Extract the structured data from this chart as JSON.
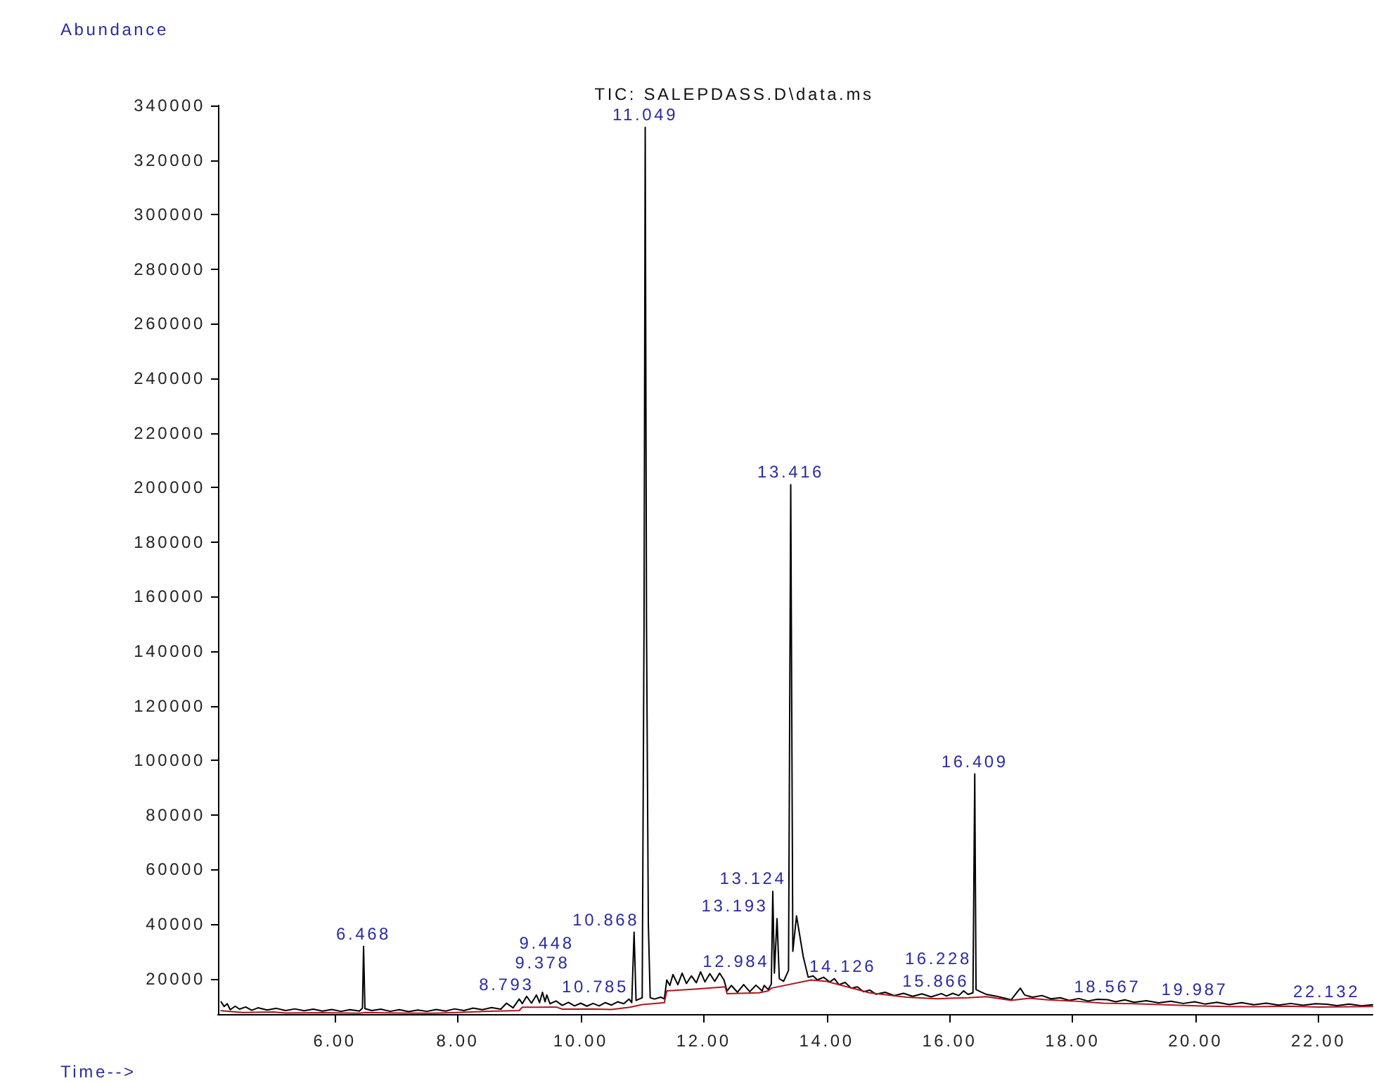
{
  "chart_data": {
    "type": "line",
    "title": "TIC: SALEPDASS.D\\data.ms",
    "xlabel": "Time-->",
    "ylabel": "Abundance",
    "xlim": [
      4.1,
      22.88
    ],
    "xticks": [
      {
        "value": 6,
        "label": "6.00"
      },
      {
        "value": 8,
        "label": "8.00"
      },
      {
        "value": 10,
        "label": "10.00"
      },
      {
        "value": 12,
        "label": "12.00"
      },
      {
        "value": 14,
        "label": "14.00"
      },
      {
        "value": 16,
        "label": "16.00"
      },
      {
        "value": 18,
        "label": "18.00"
      },
      {
        "value": 20,
        "label": "20.00"
      },
      {
        "value": 22,
        "label": "22.00"
      }
    ],
    "ylim": [
      7000,
      340000
    ],
    "yticks": [
      20000,
      40000,
      60000,
      80000,
      100000,
      120000,
      140000,
      160000,
      180000,
      200000,
      220000,
      240000,
      260000,
      280000,
      300000,
      320000,
      340000
    ],
    "series": [
      {
        "color": "#000000",
        "x": [
          4.15,
          4.2,
          4.25,
          4.3,
          4.38,
          4.45,
          4.55,
          4.65,
          4.75,
          4.9,
          5.05,
          5.2,
          5.35,
          5.5,
          5.65,
          5.8,
          5.95,
          6.1,
          6.25,
          6.4,
          6.45,
          6.468,
          6.49,
          6.6,
          6.75,
          6.9,
          7.05,
          7.2,
          7.35,
          7.5,
          7.65,
          7.8,
          7.95,
          8.1,
          8.25,
          8.4,
          8.55,
          8.7,
          8.793,
          8.9,
          9.0,
          9.05,
          9.12,
          9.2,
          9.28,
          9.33,
          9.378,
          9.42,
          9.448,
          9.5,
          9.6,
          9.7,
          9.8,
          9.9,
          10.0,
          10.1,
          10.2,
          10.3,
          10.4,
          10.5,
          10.6,
          10.7,
          10.785,
          10.83,
          10.868,
          10.9,
          10.95,
          11.0,
          11.03,
          11.049,
          11.07,
          11.1,
          11.13,
          11.2,
          11.3,
          11.36,
          11.4,
          11.45,
          11.5,
          11.58,
          11.65,
          11.72,
          11.8,
          11.88,
          11.95,
          12.02,
          12.1,
          12.18,
          12.26,
          12.33,
          12.38,
          12.45,
          12.55,
          12.65,
          12.75,
          12.85,
          12.95,
          12.984,
          13.05,
          13.1,
          13.124,
          13.15,
          13.193,
          13.23,
          13.3,
          13.38,
          13.416,
          13.45,
          13.51,
          13.62,
          13.7,
          13.78,
          13.85,
          13.95,
          14.05,
          14.126,
          14.2,
          14.3,
          14.4,
          14.5,
          14.6,
          14.7,
          14.8,
          14.95,
          15.1,
          15.25,
          15.4,
          15.55,
          15.7,
          15.866,
          15.95,
          16.05,
          16.15,
          16.228,
          16.3,
          16.38,
          16.409,
          16.43,
          16.5,
          16.6,
          16.75,
          16.9,
          17.0,
          17.08,
          17.15,
          17.22,
          17.35,
          17.5,
          17.65,
          17.8,
          17.95,
          18.1,
          18.25,
          18.4,
          18.567,
          18.7,
          18.85,
          19.0,
          19.2,
          19.4,
          19.6,
          19.8,
          19.987,
          20.15,
          20.35,
          20.55,
          20.75,
          20.95,
          21.15,
          21.35,
          21.55,
          21.75,
          21.95,
          22.132,
          22.3,
          22.5,
          22.7,
          22.88
        ],
        "values": [
          11500,
          9800,
          10800,
          8600,
          9900,
          8800,
          9600,
          8400,
          9300,
          8500,
          9100,
          8300,
          8900,
          8200,
          8800,
          8100,
          8700,
          8000,
          8600,
          8100,
          9200,
          31800,
          9000,
          8300,
          8800,
          8000,
          8600,
          7900,
          8500,
          8000,
          8700,
          8100,
          8900,
          8300,
          9200,
          8600,
          9400,
          8800,
          11000,
          9300,
          12500,
          10800,
          13500,
          11000,
          14000,
          11200,
          15000,
          11500,
          14000,
          10800,
          11800,
          10200,
          11300,
          10000,
          11000,
          9900,
          10900,
          10000,
          11200,
          10300,
          11500,
          10800,
          12500,
          11200,
          37000,
          12000,
          12500,
          13000,
          150000,
          332000,
          150000,
          40000,
          13000,
          12500,
          13200,
          12600,
          19500,
          17500,
          21500,
          17800,
          22000,
          18200,
          21000,
          18500,
          22500,
          18800,
          21800,
          19000,
          22000,
          19500,
          15500,
          17500,
          15000,
          17800,
          15200,
          17600,
          15500,
          17500,
          16000,
          18000,
          52000,
          22000,
          42000,
          20000,
          19000,
          23000,
          201000,
          30000,
          43000,
          28000,
          20500,
          21000,
          19500,
          20500,
          18800,
          20000,
          17800,
          18600,
          16500,
          17000,
          15200,
          15800,
          14300,
          15000,
          13800,
          14600,
          13500,
          14400,
          13300,
          14500,
          13600,
          14600,
          13800,
          15500,
          14200,
          14800,
          95000,
          16000,
          15200,
          14200,
          13600,
          12800,
          12200,
          14500,
          16500,
          14000,
          13200,
          13800,
          12600,
          13000,
          12000,
          12700,
          11800,
          12400,
          12300,
          11500,
          12200,
          11300,
          11900,
          11100,
          11700,
          10900,
          11500,
          10700,
          11300,
          10500,
          11200,
          10400,
          11000,
          10300,
          10900,
          10200,
          10800,
          10600,
          10100,
          10700,
          10000,
          10400
        ]
      },
      {
        "color": "#b0141e",
        "x": [
          4.15,
          4.5,
          5.0,
          5.2,
          5.8,
          6.4,
          6.5,
          7.0,
          7.6,
          8.0,
          8.5,
          9.0,
          9.05,
          9.6,
          9.7,
          10.2,
          10.5,
          10.8,
          11.0,
          11.36,
          11.4,
          11.9,
          12.35,
          12.38,
          12.9,
          13.05,
          13.1,
          13.75,
          14.0,
          14.3,
          14.7,
          15.3,
          15.8,
          16.0,
          16.3,
          16.6,
          17.0,
          17.3,
          17.6,
          18.0,
          18.5,
          19.0,
          20.0,
          20.5,
          21.0,
          21.5,
          22.0,
          22.88
        ],
        "values": [
          8200,
          7600,
          7800,
          7400,
          7500,
          7300,
          7600,
          7400,
          7300,
          7600,
          8000,
          8300,
          9500,
          9600,
          8800,
          8900,
          8700,
          9500,
          10500,
          11200,
          15500,
          16200,
          17000,
          14500,
          14800,
          15500,
          16500,
          19500,
          19000,
          17200,
          14800,
          13200,
          12600,
          12800,
          13000,
          13400,
          12000,
          12800,
          12200,
          11800,
          11000,
          10800,
          10000,
          9800,
          9700,
          9900,
          9600,
          9800
        ]
      }
    ],
    "annotations": [
      {
        "text": "6.468",
        "x": 6.468,
        "y": 31800
      },
      {
        "text": "8.793",
        "x": 8.793,
        "y": 11000
      },
      {
        "text": "9.378",
        "x": 9.378,
        "y": 15000
      },
      {
        "text": "9.448",
        "x": 9.448,
        "y": 14000
      },
      {
        "text": "10.785",
        "x": 10.785,
        "y": 12500
      },
      {
        "text": "10.868",
        "x": 10.868,
        "y": 37000
      },
      {
        "text": "11.049",
        "x": 11.049,
        "y": 332000
      },
      {
        "text": "12.984",
        "x": 12.984,
        "y": 17500
      },
      {
        "text": "13.124",
        "x": 13.124,
        "y": 52000
      },
      {
        "text": "13.193",
        "x": 13.193,
        "y": 42000
      },
      {
        "text": "13.416",
        "x": 13.416,
        "y": 201000
      },
      {
        "text": "14.126",
        "x": 14.126,
        "y": 20000
      },
      {
        "text": "15.866",
        "x": 15.866,
        "y": 14500
      },
      {
        "text": "16.228",
        "x": 16.228,
        "y": 15500
      },
      {
        "text": "16.409",
        "x": 16.409,
        "y": 95000
      },
      {
        "text": "18.567",
        "x": 18.567,
        "y": 12300
      },
      {
        "text": "19.987",
        "x": 19.987,
        "y": 11500
      },
      {
        "text": "22.132",
        "x": 22.132,
        "y": 10600
      }
    ]
  }
}
